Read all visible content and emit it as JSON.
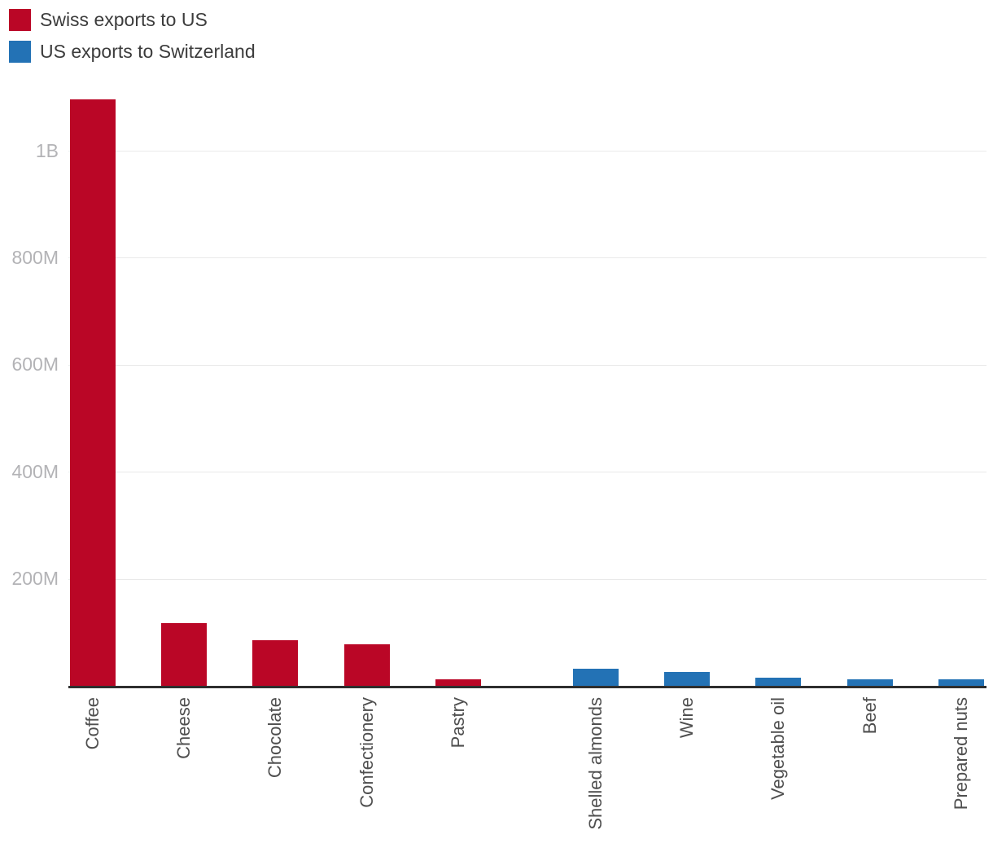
{
  "legend": {
    "items": [
      {
        "label": "Swiss exports to US",
        "color": "#BA0626"
      },
      {
        "label": "US exports to Switzerland",
        "color": "#2372B5"
      }
    ]
  },
  "chart_data": {
    "type": "bar",
    "title": "",
    "categories": [
      "Coffee",
      "Cheese",
      "Chocolate",
      "Confectionery",
      "Pastry",
      "Shelled almonds",
      "Wine",
      "Vegetable oil",
      "Beef",
      "Prepared nuts"
    ],
    "series": [
      {
        "name": "Swiss exports to US",
        "color": "#BA0626",
        "values": [
          1096,
          117,
          85,
          78,
          12,
          0,
          0,
          0,
          0,
          0
        ]
      },
      {
        "name": "US exports to Switzerland",
        "color": "#2372B5",
        "values": [
          0,
          0,
          0,
          0,
          0,
          32,
          26,
          15,
          12,
          12
        ]
      }
    ],
    "value_unit": "millions USD (estimated from bar heights)",
    "yticks": [
      {
        "label": "1B",
        "value": 1000
      },
      {
        "label": "800M",
        "value": 800
      },
      {
        "label": "600M",
        "value": 600
      },
      {
        "label": "400M",
        "value": 400
      },
      {
        "label": "200M",
        "value": 200
      }
    ],
    "ylim": [
      0,
      1120
    ],
    "grid": true,
    "legend_position": "top-left",
    "colors": {
      "axis_line": "#2e2e2e",
      "gridline": "#e9e9e9",
      "ytick_text": "#b3b3b6",
      "xlabel_text": "#4f4f4f"
    }
  }
}
